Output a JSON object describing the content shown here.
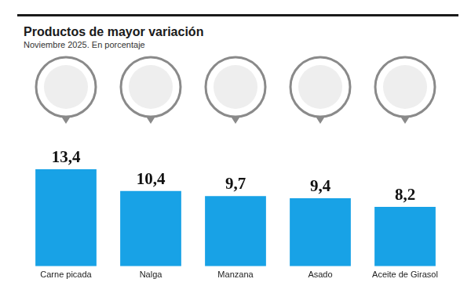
{
  "chart_data": {
    "type": "bar",
    "title": "Productos de mayor variación",
    "subtitle": "Noviembre 2025. En porcentaje",
    "categories": [
      "Carne picada",
      "Nalga",
      "Manzana",
      "Asado",
      "Aceite de Girasol"
    ],
    "values": [
      13.4,
      10.4,
      9.7,
      9.4,
      8.2
    ],
    "value_labels": [
      "13,4",
      "10,4",
      "9,7",
      "9,4",
      "8,2"
    ],
    "color": "#18a2e6",
    "ylim": [
      0,
      13.4
    ],
    "grid": false,
    "data_labels": true,
    "tick_labels": "x"
  }
}
